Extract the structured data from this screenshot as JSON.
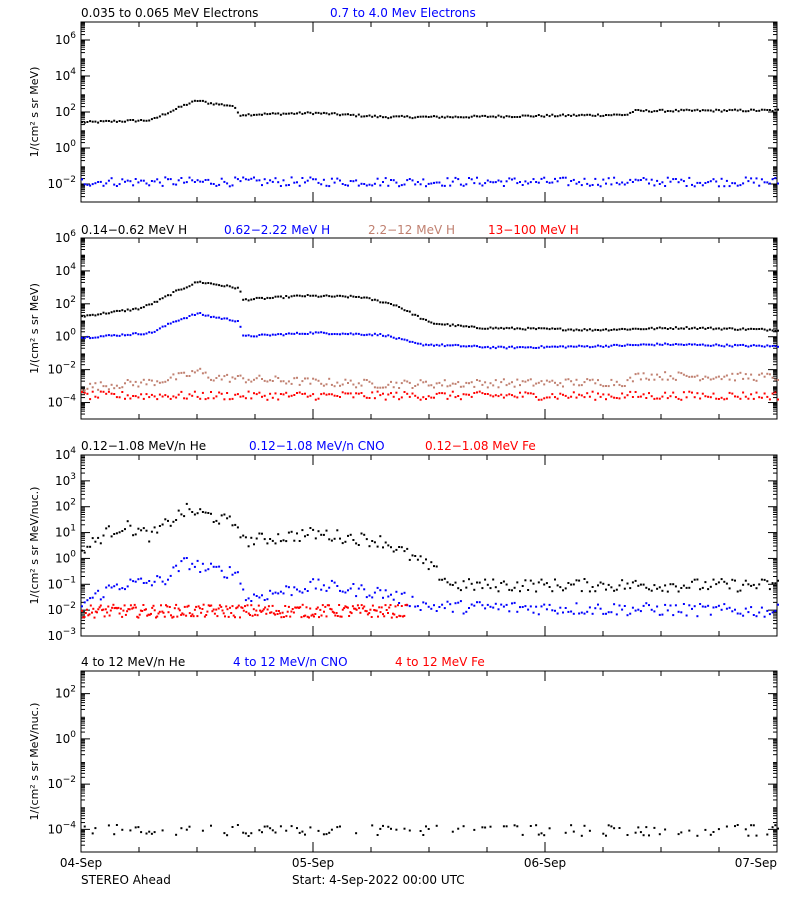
{
  "colors": {
    "black": "#000000",
    "blue": "#0000ff",
    "tan": "#c08070",
    "red": "#ff0000"
  },
  "footer": {
    "left": "STEREO Ahead",
    "start": "Start:  4-Sep-2022 00:00 UTC"
  },
  "chart_data": [
    {
      "type": "scatter",
      "yscale": "log",
      "ylabel": "1/(cm² s sr MeV)",
      "ylim_exp": [
        -3,
        7
      ],
      "ytick_exps": [
        -2,
        0,
        2,
        4,
        6
      ],
      "x": [
        "04-Sep",
        "05-Sep",
        "06-Sep",
        "07-Sep"
      ],
      "xlim_days": [
        0,
        3
      ],
      "series": [
        {
          "name": "0.035 to 0.065 MeV Electrons",
          "color": "#000000",
          "profile": [
            [
              0,
              30
            ],
            [
              0.3,
              40
            ],
            [
              0.35,
              80
            ],
            [
              0.45,
              300
            ],
            [
              0.5,
              500
            ],
            [
              0.55,
              350
            ],
            [
              0.65,
              250
            ],
            [
              0.68,
              80
            ],
            [
              1.0,
              100
            ],
            [
              1.3,
              60
            ],
            [
              1.6,
              60
            ],
            [
              2.0,
              70
            ],
            [
              2.35,
              80
            ],
            [
              2.38,
              130
            ],
            [
              3.0,
              140
            ]
          ]
        },
        {
          "name": "0.7 to 4.0 Mev Electrons",
          "color": "#0000ff",
          "profile": [
            [
              0,
              0.015
            ],
            [
              3,
              0.015
            ]
          ]
        }
      ]
    },
    {
      "type": "scatter",
      "yscale": "log",
      "ylabel": "1/(cm² s sr MeV)",
      "ylim_exp": [
        -5,
        6
      ],
      "ytick_exps": [
        -4,
        -2,
        0,
        2,
        4,
        6
      ],
      "x": [
        "04-Sep",
        "05-Sep",
        "06-Sep",
        "07-Sep"
      ],
      "xlim_days": [
        0,
        3
      ],
      "series": [
        {
          "name": "0.14−0.62 MeV H",
          "color": "#000000",
          "profile": [
            [
              0,
              20
            ],
            [
              0.25,
              60
            ],
            [
              0.32,
              150
            ],
            [
              0.4,
              600
            ],
            [
              0.5,
              2500
            ],
            [
              0.55,
              2000
            ],
            [
              0.68,
              1000
            ],
            [
              0.69,
              200
            ],
            [
              0.95,
              350
            ],
            [
              1.2,
              300
            ],
            [
              1.35,
              100
            ],
            [
              1.5,
              8
            ],
            [
              1.7,
              4
            ],
            [
              2.2,
              3
            ],
            [
              2.6,
              4
            ],
            [
              3.0,
              3
            ]
          ]
        },
        {
          "name": "0.62−2.22 MeV H",
          "color": "#0000ff",
          "profile": [
            [
              0,
              1
            ],
            [
              0.3,
              2
            ],
            [
              0.4,
              10
            ],
            [
              0.5,
              30
            ],
            [
              0.55,
              20
            ],
            [
              0.68,
              10
            ],
            [
              0.69,
              1.2
            ],
            [
              1.0,
              2
            ],
            [
              1.3,
              1.5
            ],
            [
              1.45,
              0.4
            ],
            [
              1.8,
              0.25
            ],
            [
              2.2,
              0.3
            ],
            [
              2.5,
              0.4
            ],
            [
              3.0,
              0.3
            ]
          ]
        },
        {
          "name": "2.2−12 MeV H",
          "color": "#c08070",
          "profile": [
            [
              0,
              0.001
            ],
            [
              0.3,
              0.002
            ],
            [
              0.45,
              0.005
            ],
            [
              0.5,
              0.01
            ],
            [
              0.55,
              0.004
            ],
            [
              1.0,
              0.002
            ],
            [
              1.3,
              0.0015
            ],
            [
              2.35,
              0.002
            ],
            [
              2.4,
              0.005
            ],
            [
              3.0,
              0.004
            ]
          ]
        },
        {
          "name": "13−100 MeV H",
          "color": "#ff0000",
          "profile": [
            [
              0,
              0.0003
            ],
            [
              3,
              0.0003
            ]
          ]
        }
      ]
    },
    {
      "type": "scatter",
      "yscale": "log",
      "ylabel": "1/(cm² s sr MeV/nuc.)",
      "ylim_exp": [
        -3,
        4
      ],
      "ytick_exps": [
        -3,
        -2,
        -1,
        0,
        1,
        2,
        3,
        4
      ],
      "x": [
        "04-Sep",
        "05-Sep",
        "06-Sep",
        "07-Sep"
      ],
      "xlim_days": [
        0,
        3
      ],
      "series": [
        {
          "name": "0.12−1.08 MeV/n He",
          "color": "#000000",
          "profile": [
            [
              0,
              2
            ],
            [
              0.1,
              10
            ],
            [
              0.18,
              20
            ],
            [
              0.3,
              8
            ],
            [
              0.38,
              30
            ],
            [
              0.45,
              80
            ],
            [
              0.55,
              50
            ],
            [
              0.68,
              20
            ],
            [
              0.69,
              5
            ],
            [
              1.0,
              10
            ],
            [
              1.3,
              5
            ],
            [
              1.5,
              0.5
            ],
            [
              1.6,
              0.1
            ],
            [
              3.0,
              0.1
            ]
          ]
        },
        {
          "name": "0.12−1.08 MeV/n CNO",
          "color": "#0000ff",
          "profile": [
            [
              0,
              0.02
            ],
            [
              0.15,
              0.1
            ],
            [
              0.35,
              0.15
            ],
            [
              0.45,
              0.8
            ],
            [
              0.55,
              0.4
            ],
            [
              0.68,
              0.3
            ],
            [
              0.7,
              0.03
            ],
            [
              1.0,
              0.1
            ],
            [
              1.3,
              0.05
            ],
            [
              1.5,
              0.015
            ],
            [
              3.0,
              0.01
            ]
          ]
        },
        {
          "name": "0.12−1.08 MeV Fe",
          "color": "#ff0000",
          "profile": [
            [
              0,
              0.01
            ],
            [
              1.4,
              0.01
            ]
          ]
        }
      ]
    },
    {
      "type": "scatter",
      "yscale": "log",
      "ylabel": "1/(cm² s sr MeV/nuc.)",
      "ylim_exp": [
        -5,
        3
      ],
      "ytick_exps": [
        -4,
        -2,
        0,
        2
      ],
      "x": [
        "04-Sep",
        "05-Sep",
        "06-Sep",
        "07-Sep"
      ],
      "xlim_days": [
        0,
        3
      ],
      "series": [
        {
          "name": "4 to 12 MeV/n He",
          "color": "#000000",
          "profile": [
            [
              0,
              0.0001
            ],
            [
              3,
              0.0001
            ]
          ]
        },
        {
          "name": "4 to 12 MeV/n CNO",
          "color": "#0000ff",
          "profile": []
        },
        {
          "name": "4 to 12 MeV Fe",
          "color": "#ff0000",
          "profile": []
        }
      ]
    }
  ]
}
